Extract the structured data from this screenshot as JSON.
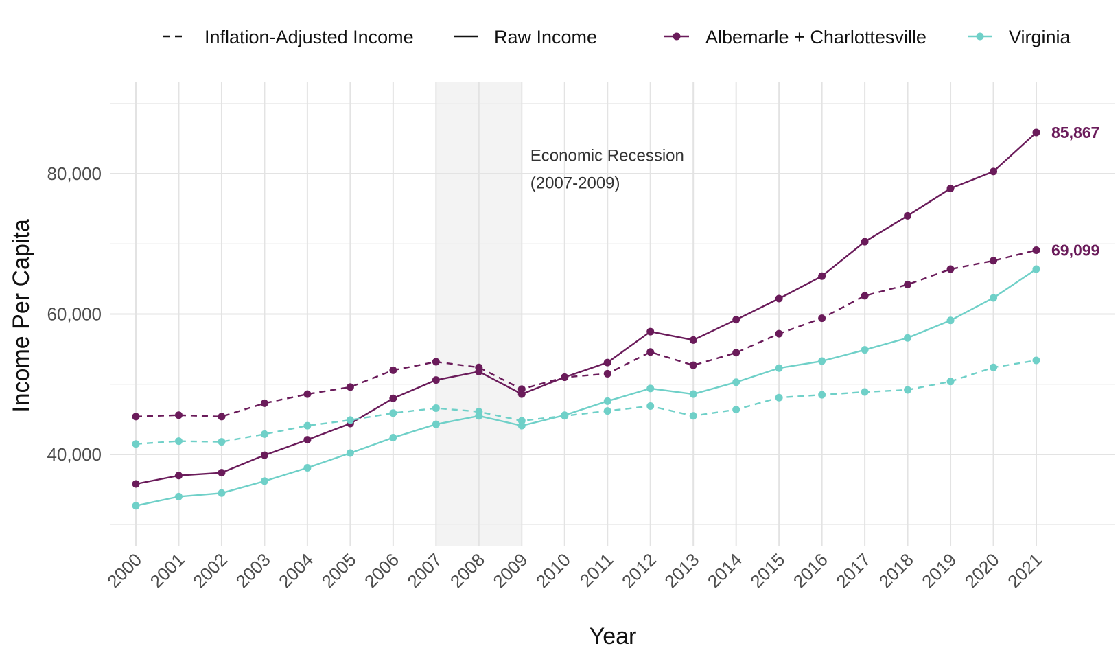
{
  "chart_data": {
    "type": "line",
    "title": "",
    "xlabel": "Year",
    "ylabel": "Income Per Capita",
    "x": [
      2000,
      2001,
      2002,
      2003,
      2004,
      2005,
      2006,
      2007,
      2008,
      2009,
      2010,
      2011,
      2012,
      2013,
      2014,
      2015,
      2016,
      2017,
      2018,
      2019,
      2020,
      2021
    ],
    "x_tick_labels": [
      "2000",
      "2001",
      "2002",
      "2003",
      "2004",
      "2005",
      "2006",
      "2007",
      "2008",
      "2009",
      "2010",
      "2011",
      "2012",
      "2013",
      "2014",
      "2015",
      "2016",
      "2017",
      "2018",
      "2019",
      "2020",
      "2021"
    ],
    "y_ticks": [
      40000,
      60000,
      80000
    ],
    "y_tick_labels": [
      "40,000",
      "60,000",
      "80,000"
    ],
    "ylim": [
      27000,
      93000
    ],
    "grid": true,
    "legend_position": "top",
    "legend": {
      "linetype_entries": [
        "Inflation-Adjusted Income",
        "Raw Income"
      ],
      "color_entries": [
        "Albemarle + Charlottesville",
        "Virginia"
      ]
    },
    "series": [
      {
        "name": "Albemarle + Charlottesville",
        "region": "Albemarle + Charlottesville",
        "measure": "Raw Income",
        "color": "#6a1b5a",
        "dash": false,
        "values": [
          35800,
          37000,
          37400,
          39900,
          42100,
          44400,
          48000,
          50600,
          51800,
          48600,
          51000,
          53100,
          57500,
          56300,
          59200,
          62200,
          65400,
          70300,
          74000,
          77900,
          80300,
          85867
        ],
        "end_label": "85,867"
      },
      {
        "name": "Albemarle + Charlottesville",
        "region": "Albemarle + Charlottesville",
        "measure": "Inflation-Adjusted Income",
        "color": "#6a1b5a",
        "dash": true,
        "values": [
          45400,
          45600,
          45400,
          47300,
          48600,
          49600,
          52000,
          53200,
          52400,
          49300,
          51000,
          51500,
          54600,
          52700,
          54500,
          57200,
          59400,
          62600,
          64200,
          66400,
          67600,
          69099
        ],
        "end_label": "69,099"
      },
      {
        "name": "Virginia",
        "region": "Virginia",
        "measure": "Raw Income",
        "color": "#6fd0c8",
        "dash": false,
        "values": [
          32700,
          34000,
          34500,
          36200,
          38100,
          40200,
          42400,
          44300,
          45500,
          44100,
          45600,
          47600,
          49400,
          48600,
          50300,
          52300,
          53300,
          54900,
          56600,
          59100,
          62300,
          66400
        ]
      },
      {
        "name": "Virginia",
        "region": "Virginia",
        "measure": "Inflation-Adjusted Income",
        "color": "#6fd0c8",
        "dash": true,
        "values": [
          41500,
          41900,
          41800,
          42900,
          44100,
          44900,
          45900,
          46600,
          46100,
          44800,
          45500,
          46200,
          46900,
          45500,
          46400,
          48100,
          48500,
          48900,
          49200,
          50400,
          52400,
          53400
        ]
      }
    ],
    "shaded_region": {
      "x_start": 2007,
      "x_end": 2009,
      "color": "#f3f3f3"
    },
    "annotation": {
      "line1": "Economic Recession",
      "line2": "(2007-2009)",
      "x": 2009.2,
      "y": 81800
    }
  }
}
